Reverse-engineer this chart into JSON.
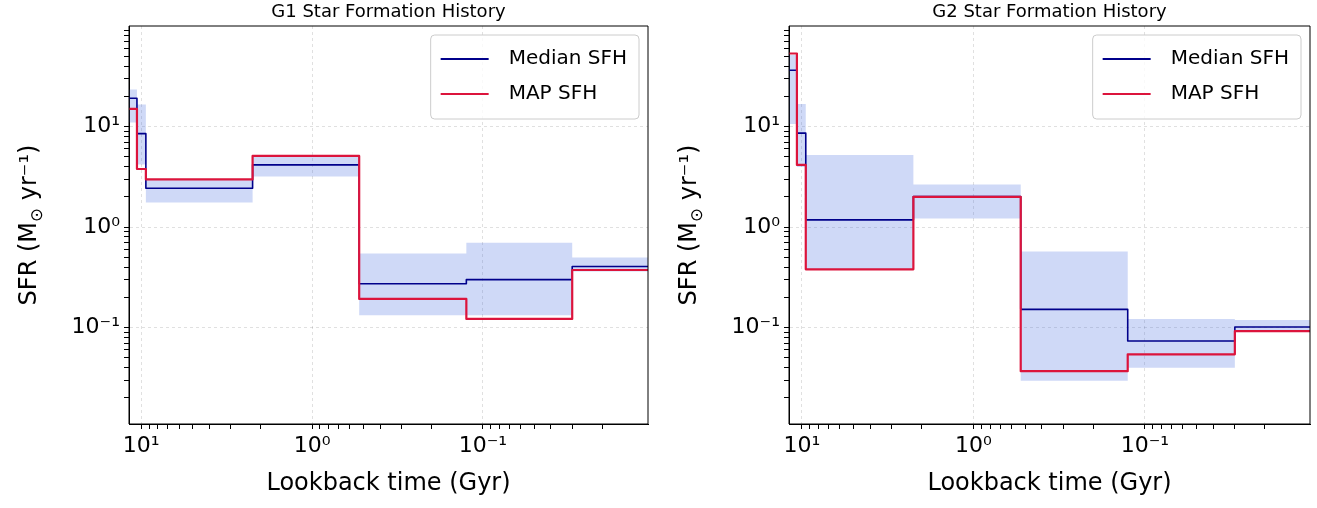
{
  "chart_data": [
    {
      "type": "step",
      "title": "G1 Star Formation History",
      "xlabel": "Lookback time (Gyr)",
      "ylabel": "SFR (M$_{⊙}$ yr⁻¹)",
      "x": [
        11.8,
        10.6,
        9.4,
        2.23,
        0.53,
        0.125,
        0.03,
        0.0108
      ],
      "series": [
        {
          "name": "Median SFH",
          "color": "#00008b",
          "values": [
            19.1,
            8.5,
            2.43,
            4.16,
            0.273,
            0.3,
            0.405,
            0.405
          ],
          "lower": [
            11,
            4.2,
            1.76,
            3.18,
            0.133,
            0.133,
            0.362,
            0.362
          ],
          "upper": [
            23.4,
            16.6,
            2.94,
            5.1,
            0.547,
            0.698,
            0.497,
            0.497
          ]
        },
        {
          "name": "MAP SFH",
          "color": "#dc143c",
          "values": [
            15.0,
            3.78,
            2.98,
            5.1,
            0.193,
            0.122,
            0.374,
            0.374
          ]
        }
      ],
      "log": "xy",
      "xlim": [
        11.8,
        0.0108
      ],
      "ylim": [
        0.011,
        100
      ],
      "xticks": [
        {
          "value": 10,
          "label": "10¹"
        },
        {
          "value": 9,
          "label": null
        },
        {
          "value": 8,
          "label": null
        },
        {
          "value": 7,
          "label": null
        },
        {
          "value": 6,
          "label": null
        },
        {
          "value": 5,
          "label": null
        },
        {
          "value": 4,
          "label": null
        },
        {
          "value": 3,
          "label": null
        },
        {
          "value": 2,
          "label": null
        },
        {
          "value": 1,
          "label": "10⁰"
        },
        {
          "value": 0.9,
          "label": null
        },
        {
          "value": 0.8,
          "label": null
        },
        {
          "value": 0.7,
          "label": null
        },
        {
          "value": 0.6,
          "label": null
        },
        {
          "value": 0.5,
          "label": null
        },
        {
          "value": 0.4,
          "label": null
        },
        {
          "value": 0.3,
          "label": null
        },
        {
          "value": 0.2,
          "label": null
        },
        {
          "value": 0.1,
          "label": "10⁻¹"
        },
        {
          "value": 0.09,
          "label": null
        },
        {
          "value": 0.08,
          "label": null
        },
        {
          "value": 0.07,
          "label": null
        },
        {
          "value": 0.06,
          "label": null
        },
        {
          "value": 0.05,
          "label": null
        },
        {
          "value": 0.04,
          "label": null
        },
        {
          "value": 0.03,
          "label": null
        },
        {
          "value": 0.02,
          "label": null
        }
      ],
      "yticks": [
        {
          "value": 0.02,
          "label": null
        },
        {
          "value": 0.03,
          "label": null
        },
        {
          "value": 0.04,
          "label": null
        },
        {
          "value": 0.05,
          "label": null
        },
        {
          "value": 0.06,
          "label": null
        },
        {
          "value": 0.07,
          "label": null
        },
        {
          "value": 0.08,
          "label": null
        },
        {
          "value": 0.09,
          "label": null
        },
        {
          "value": 0.1,
          "label": "10⁻¹"
        },
        {
          "value": 0.2,
          "label": null
        },
        {
          "value": 0.3,
          "label": null
        },
        {
          "value": 0.4,
          "label": null
        },
        {
          "value": 0.5,
          "label": null
        },
        {
          "value": 0.6,
          "label": null
        },
        {
          "value": 0.7,
          "label": null
        },
        {
          "value": 0.8,
          "label": null
        },
        {
          "value": 0.9,
          "label": null
        },
        {
          "value": 1,
          "label": "10⁰"
        },
        {
          "value": 2,
          "label": null
        },
        {
          "value": 3,
          "label": null
        },
        {
          "value": 4,
          "label": null
        },
        {
          "value": 5,
          "label": null
        },
        {
          "value": 6,
          "label": null
        },
        {
          "value": 7,
          "label": null
        },
        {
          "value": 8,
          "label": null
        },
        {
          "value": 9,
          "label": null
        },
        {
          "value": 10,
          "label": "10¹"
        },
        {
          "value": 20,
          "label": null
        },
        {
          "value": 30,
          "label": null
        },
        {
          "value": 40,
          "label": null
        },
        {
          "value": 50,
          "label": null
        },
        {
          "value": 60,
          "label": null
        },
        {
          "value": 70,
          "label": null
        },
        {
          "value": 80,
          "label": null
        },
        {
          "value": 90,
          "label": null
        }
      ],
      "grid": true,
      "legend": "top right"
    },
    {
      "type": "step",
      "title": "G2 Star Formation History",
      "xlabel": "Lookback time (Gyr)",
      "ylabel": "SFR (M$_{⊙}$ yr⁻¹)",
      "x": [
        11.9,
        10.7,
        9.5,
        2.24,
        0.53,
        0.126,
        0.0299,
        0.0109
      ],
      "series": [
        {
          "name": "Median SFH",
          "color": "#00008b",
          "values": [
            36.3,
            8.6,
            1.18,
            2.01,
            0.152,
            0.0736,
            0.1016,
            0.1016
          ],
          "lower": [
            10.6,
            3.95,
            0.38,
            1.22,
            0.0296,
            0.0399,
            0.0925,
            0.0925
          ],
          "upper": [
            51.6,
            16.8,
            5.2,
            2.65,
            0.573,
            0.1217,
            0.119,
            0.119
          ]
        },
        {
          "name": "MAP SFH",
          "color": "#dc143c",
          "values": [
            53.3,
            4.15,
            0.38,
            2.0,
            0.0369,
            0.0542,
            0.0925,
            0.0925
          ]
        }
      ],
      "log": "xy",
      "xlim": [
        11.9,
        0.0109
      ],
      "ylim": [
        0.011,
        100
      ],
      "xticks": [
        {
          "value": 10,
          "label": "10¹"
        },
        {
          "value": 9,
          "label": null
        },
        {
          "value": 8,
          "label": null
        },
        {
          "value": 7,
          "label": null
        },
        {
          "value": 6,
          "label": null
        },
        {
          "value": 5,
          "label": null
        },
        {
          "value": 4,
          "label": null
        },
        {
          "value": 3,
          "label": null
        },
        {
          "value": 2,
          "label": null
        },
        {
          "value": 1,
          "label": "10⁰"
        },
        {
          "value": 0.9,
          "label": null
        },
        {
          "value": 0.8,
          "label": null
        },
        {
          "value": 0.7,
          "label": null
        },
        {
          "value": 0.6,
          "label": null
        },
        {
          "value": 0.5,
          "label": null
        },
        {
          "value": 0.4,
          "label": null
        },
        {
          "value": 0.3,
          "label": null
        },
        {
          "value": 0.2,
          "label": null
        },
        {
          "value": 0.1,
          "label": "10⁻¹"
        },
        {
          "value": 0.09,
          "label": null
        },
        {
          "value": 0.08,
          "label": null
        },
        {
          "value": 0.07,
          "label": null
        },
        {
          "value": 0.06,
          "label": null
        },
        {
          "value": 0.05,
          "label": null
        },
        {
          "value": 0.04,
          "label": null
        },
        {
          "value": 0.03,
          "label": null
        },
        {
          "value": 0.02,
          "label": null
        }
      ],
      "yticks": [
        {
          "value": 0.02,
          "label": null
        },
        {
          "value": 0.03,
          "label": null
        },
        {
          "value": 0.04,
          "label": null
        },
        {
          "value": 0.05,
          "label": null
        },
        {
          "value": 0.06,
          "label": null
        },
        {
          "value": 0.07,
          "label": null
        },
        {
          "value": 0.08,
          "label": null
        },
        {
          "value": 0.09,
          "label": null
        },
        {
          "value": 0.1,
          "label": "10⁻¹"
        },
        {
          "value": 0.2,
          "label": null
        },
        {
          "value": 0.3,
          "label": null
        },
        {
          "value": 0.4,
          "label": null
        },
        {
          "value": 0.5,
          "label": null
        },
        {
          "value": 0.6,
          "label": null
        },
        {
          "value": 0.7,
          "label": null
        },
        {
          "value": 0.8,
          "label": null
        },
        {
          "value": 0.9,
          "label": null
        },
        {
          "value": 1,
          "label": "10⁰"
        },
        {
          "value": 2,
          "label": null
        },
        {
          "value": 3,
          "label": null
        },
        {
          "value": 4,
          "label": null
        },
        {
          "value": 5,
          "label": null
        },
        {
          "value": 6,
          "label": null
        },
        {
          "value": 7,
          "label": null
        },
        {
          "value": 8,
          "label": null
        },
        {
          "value": 9,
          "label": null
        },
        {
          "value": 10,
          "label": "10¹"
        },
        {
          "value": 20,
          "label": null
        },
        {
          "value": 30,
          "label": null
        },
        {
          "value": 40,
          "label": null
        },
        {
          "value": 50,
          "label": null
        },
        {
          "value": 60,
          "label": null
        },
        {
          "value": 70,
          "label": null
        },
        {
          "value": 80,
          "label": null
        },
        {
          "value": 90,
          "label": null
        }
      ],
      "grid": true,
      "legend": "top right"
    }
  ]
}
